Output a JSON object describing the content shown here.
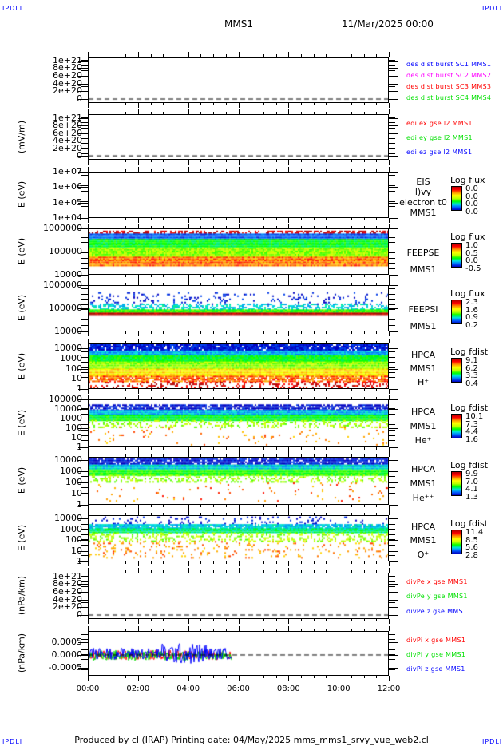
{
  "header": {
    "corner_tl": "IPDLI",
    "corner_tr": "IPDLI",
    "corner_bl": "IPDLI",
    "corner_br": "IPDLI",
    "title": "MMS1",
    "date": "11/Mar/2025 00:00"
  },
  "footer": {
    "text": "Produced by cl (IRAP)   Printing date: 04/May/2025   mms_mms1_srvy_vue_web2.cl"
  },
  "colors": {
    "blue": "#0000ff",
    "magenta": "#ff00ff",
    "red": "#ff0000",
    "green": "#00e000"
  },
  "chart_data": {
    "type": "heatmap",
    "x_range_hours": [
      0,
      12
    ],
    "x_tick_labels": [
      "00:00",
      "02:00",
      "04:00",
      "06:00",
      "08:00",
      "10:00",
      "12:00"
    ],
    "panels": [
      {
        "id": "des-dist",
        "kind": "line",
        "scale": "linear",
        "ylim": [
          -1.03e+20,
          1.096e+21
        ],
        "ylabel": "",
        "ticks": [
          {
            "v": 0,
            "t": "0"
          },
          {
            "v": 2e+20,
            "t": "2e+20"
          },
          {
            "v": 4e+20,
            "t": "4e+20"
          },
          {
            "v": 6e+20,
            "t": "6e+20"
          },
          {
            "v": 8e+20,
            "t": "8e+20"
          },
          {
            "v": 1e+21,
            "t": "1e+21"
          }
        ],
        "zero_line": true,
        "legend": [
          {
            "t": "des dist burst SC1 MMS1",
            "c": "#0000ff"
          },
          {
            "t": "des dist burst SC2 MMS2",
            "c": "#ff00ff"
          },
          {
            "t": "des dist burst SC3 MMS3",
            "c": "#ff0000"
          },
          {
            "t": "des dist burst SC4 MMS4",
            "c": "#00e000"
          }
        ]
      },
      {
        "id": "edi-e",
        "kind": "line",
        "scale": "linear",
        "ylim": [
          -1.03e+20,
          1.096e+21
        ],
        "ylabel": "(mV/m)",
        "ticks": [
          {
            "v": 0,
            "t": "0"
          },
          {
            "v": 2e+20,
            "t": "2e+20"
          },
          {
            "v": 4e+20,
            "t": "4e+20"
          },
          {
            "v": 6e+20,
            "t": "6e+20"
          },
          {
            "v": 8e+20,
            "t": "8e+20"
          },
          {
            "v": 1e+21,
            "t": "1e+21"
          }
        ],
        "zero_line": true,
        "legend": [
          {
            "t": "edi ex gse l2 MMS1",
            "c": "#ff0000"
          },
          {
            "t": "edi ey gse l2 MMS1",
            "c": "#00e000"
          },
          {
            "t": "edi ez gse l2 MMS1",
            "c": "#0000ff"
          }
        ]
      },
      {
        "id": "eis",
        "kind": "spectrogram",
        "scale": "log",
        "ylim": [
          10000.0,
          10000000.0
        ],
        "ylabel": "E (eV)",
        "ticks": [
          {
            "v": 10000.0,
            "t": "1e+04"
          },
          {
            "v": 100000.0,
            "t": "1e+05"
          },
          {
            "v": 1000000.0,
            "t": "1e+06"
          },
          {
            "v": 10000000.0,
            "t": "1e+07"
          }
        ],
        "side": [
          "EIS",
          "l)vy electron t0",
          "MMS1"
        ],
        "cb_title": "Log flux",
        "cb_labels": [
          "0.0",
          "0.0",
          "0.0",
          "0.0"
        ],
        "bands": []
      },
      {
        "id": "feepse",
        "kind": "spectrogram",
        "scale": "log",
        "ylim": [
          10000.0,
          1000000.0
        ],
        "ylabel": "E (eV)",
        "ticks": [
          {
            "v": 10000.0,
            "t": "10000"
          },
          {
            "v": 100000.0,
            "t": "100000"
          },
          {
            "v": 1000000.0,
            "t": "1000000"
          }
        ],
        "side": [
          "FEEPSE",
          "MMS1"
        ],
        "cb_title": "Log flux",
        "cb_labels": [
          "1.0",
          "0.5",
          "0.0",
          "-0.5"
        ],
        "cb_range": [
          -0.5,
          1.0
        ],
        "t_end": 12,
        "bands": [
          {
            "e": [
              600000.0,
              800000.0
            ],
            "z": 0.95,
            "d": 0.5
          },
          {
            "e": [
              350000.0,
              600000.0
            ],
            "z": -0.3,
            "d": 1
          },
          {
            "e": [
              150000.0,
              350000.0
            ],
            "z": 0.15,
            "d": 1
          },
          {
            "e": [
              60000.0,
              150000.0
            ],
            "z": 0.35,
            "d": 1
          },
          {
            "e": [
              25000.0,
              60000.0
            ],
            "z": 0.75,
            "d": 1
          }
        ]
      },
      {
        "id": "feepsi",
        "kind": "spectrogram",
        "scale": "log",
        "ylim": [
          10000.0,
          1000000.0
        ],
        "ylabel": "E (eV)",
        "ticks": [
          {
            "v": 10000.0,
            "t": "10000"
          },
          {
            "v": 100000.0,
            "t": "100000"
          },
          {
            "v": 1000000.0,
            "t": "1000000"
          }
        ],
        "side": [
          "FEEPSI",
          "MMS1"
        ],
        "cb_title": "Log flux",
        "cb_labels": [
          "2.3",
          "1.6",
          "0.9",
          "0.2"
        ],
        "cb_range": [
          0.2,
          2.3
        ],
        "t_end": 12,
        "bands": [
          {
            "e": [
              160000.0,
              500000.0
            ],
            "z": 0.3,
            "d": 0.12
          },
          {
            "e": [
              90000.0,
              160000.0
            ],
            "z": 0.8,
            "d": 0.5
          },
          {
            "e": [
              65000.0,
              90000.0
            ],
            "z": 1.2,
            "d": 1
          },
          {
            "e": [
              55000.0,
              65000.0
            ],
            "z": 2.3,
            "d": 1
          }
        ]
      },
      {
        "id": "hpca-h",
        "kind": "spectrogram",
        "scale": "log",
        "ylim": [
          1,
          30000.0
        ],
        "ylabel": "E (eV)",
        "ticks": [
          {
            "v": 1,
            "t": "1"
          },
          {
            "v": 10,
            "t": "10"
          },
          {
            "v": 100,
            "t": "100"
          },
          {
            "v": 1000,
            "t": "1000"
          },
          {
            "v": 10000,
            "t": "10000"
          }
        ],
        "side": [
          "HPCA",
          "MMS1",
          "H⁺"
        ],
        "cb_title": "Log fdist",
        "cb_labels": [
          "9.1",
          "6.2",
          "3.3",
          "0.4"
        ],
        "cb_range": [
          0.4,
          9.1
        ],
        "t_end": 12,
        "bands": [
          {
            "e": [
              6000,
              25000.0
            ],
            "z": 0.8,
            "d": 0.9
          },
          {
            "e": [
              2000,
              6000
            ],
            "z": 2.5,
            "d": 1
          },
          {
            "e": [
              500,
              2000
            ],
            "z": 4.2,
            "d": 1
          },
          {
            "e": [
              100,
              500
            ],
            "z": 5.3,
            "d": 1
          },
          {
            "e": [
              20,
              100
            ],
            "z": 6.7,
            "d": 1
          },
          {
            "e": [
              5,
              20
            ],
            "z": 7.8,
            "d": 0.8
          },
          {
            "e": [
              1,
              5
            ],
            "z": 8.8,
            "d": 0.3
          }
        ]
      },
      {
        "id": "hpca-he1",
        "kind": "spectrogram",
        "scale": "log",
        "ylim": [
          1,
          100000.0
        ],
        "ylabel": "E (eV)",
        "ticks": [
          {
            "v": 1,
            "t": "1"
          },
          {
            "v": 10,
            "t": "10"
          },
          {
            "v": 100,
            "t": "100"
          },
          {
            "v": 1000,
            "t": "1000"
          },
          {
            "v": 10000,
            "t": "10000"
          },
          {
            "v": 100000,
            "t": "100000"
          }
        ],
        "side": [
          "HPCA",
          "MMS1",
          "He⁺"
        ],
        "cb_title": "Log fdist",
        "cb_labels": [
          "10.1",
          "7.3",
          "4.4",
          "1.6"
        ],
        "cb_range": [
          1.6,
          10.1
        ],
        "t_end": 12,
        "bands": [
          {
            "e": [
              8000,
              30000.0
            ],
            "z": 1.8,
            "d": 0.8
          },
          {
            "e": [
              2500,
              8000
            ],
            "z": 3.8,
            "d": 1
          },
          {
            "e": [
              700,
              2500
            ],
            "z": 5.3,
            "d": 1
          },
          {
            "e": [
              150,
              700
            ],
            "z": 6.5,
            "d": 0.3
          },
          {
            "e": [
              2,
              150
            ],
            "z": 8.5,
            "d": 0.03
          }
        ]
      },
      {
        "id": "hpca-he2",
        "kind": "spectrogram",
        "scale": "log",
        "ylim": [
          1,
          20000.0
        ],
        "ylabel": "E (eV)",
        "ticks": [
          {
            "v": 1,
            "t": "1"
          },
          {
            "v": 10,
            "t": "10"
          },
          {
            "v": 100,
            "t": "100"
          },
          {
            "v": 1000,
            "t": "1000"
          },
          {
            "v": 10000,
            "t": "10000"
          }
        ],
        "side": [
          "HPCA",
          "MMS1",
          "He⁺⁺"
        ],
        "cb_title": "Log fdist",
        "cb_labels": [
          "9.9",
          "7.0",
          "4.1",
          "1.3"
        ],
        "cb_range": [
          1.3,
          9.9
        ],
        "t_end": 12,
        "bands": [
          {
            "e": [
              4000,
              15000.0
            ],
            "z": 1.6,
            "d": 0.85
          },
          {
            "e": [
              1500,
              4000
            ],
            "z": 3.8,
            "d": 1
          },
          {
            "e": [
              500,
              1500
            ],
            "z": 5.3,
            "d": 1
          },
          {
            "e": [
              100,
              500
            ],
            "z": 6.2,
            "d": 0.3
          },
          {
            "e": [
              2,
              100
            ],
            "z": 8.5,
            "d": 0.03
          }
        ]
      },
      {
        "id": "hpca-o",
        "kind": "spectrogram",
        "scale": "log",
        "ylim": [
          1,
          20000.0
        ],
        "ylabel": "E (eV)",
        "ticks": [
          {
            "v": 1,
            "t": "1"
          },
          {
            "v": 10,
            "t": "10"
          },
          {
            "v": 100,
            "t": "100"
          },
          {
            "v": 1000,
            "t": "1000"
          },
          {
            "v": 10000,
            "t": "10000"
          }
        ],
        "side": [
          "HPCA",
          "MMS1",
          "O⁺"
        ],
        "cb_title": "Log fdist",
        "cb_labels": [
          "11.4",
          "8.5",
          "5.6",
          "2.8"
        ],
        "cb_range": [
          2.8,
          11.4
        ],
        "t_end": 12,
        "bands": [
          {
            "e": [
              3000,
              15000.0
            ],
            "z": 3.0,
            "d": 0.12
          },
          {
            "e": [
              1200,
              3000
            ],
            "z": 5.2,
            "d": 0.9
          },
          {
            "e": [
              500,
              1200
            ],
            "z": 6.0,
            "d": 1
          },
          {
            "e": [
              80,
              500
            ],
            "z": 7.8,
            "d": 0.35
          },
          {
            "e": [
              2,
              80
            ],
            "z": 9.8,
            "d": 0.12
          }
        ]
      },
      {
        "id": "divpe",
        "kind": "line",
        "scale": "linear",
        "ylim": [
          -1.03e+20,
          1.096e+21
        ],
        "ylabel": "(nPa/km)",
        "ticks": [
          {
            "v": 0,
            "t": "0"
          },
          {
            "v": 2e+20,
            "t": "2e+20"
          },
          {
            "v": 4e+20,
            "t": "4e+20"
          },
          {
            "v": 6e+20,
            "t": "6e+20"
          },
          {
            "v": 8e+20,
            "t": "8e+20"
          },
          {
            "v": 1e+21,
            "t": "1e+21"
          }
        ],
        "zero_line": true,
        "legend": [
          {
            "t": "divPe x gse MMS1",
            "c": "#ff0000"
          },
          {
            "t": "divPe y gse MMS1",
            "c": "#00e000"
          },
          {
            "t": "divPe z gse MMS1",
            "c": "#0000ff"
          }
        ]
      },
      {
        "id": "divpi",
        "kind": "line",
        "scale": "linear",
        "ylim": [
          -0.00079,
          0.00091
        ],
        "ylabel": "(nPa/km)",
        "ticks": [
          {
            "v": -0.0005,
            "t": "-0.0005"
          },
          {
            "v": 0,
            "t": "0.0000"
          },
          {
            "v": 0.0005,
            "t": "0.0005"
          }
        ],
        "zero_line": true,
        "t_end": 5.75,
        "series_amplitude": [
          {
            "name": "x",
            "c": "#ff0000",
            "amp": 0.00018,
            "bias": 0
          },
          {
            "name": "y",
            "c": "#00e000",
            "amp": 0.0002,
            "bias": -2e-05
          },
          {
            "name": "z",
            "c": "#0000ff",
            "amp": 0.00022,
            "bias": 5e-05
          }
        ],
        "legend": [
          {
            "t": "divPi x gse MMS1",
            "c": "#ff0000"
          },
          {
            "t": "divPi y gse MMS1",
            "c": "#00e000"
          },
          {
            "t": "divPi z gse MMS1",
            "c": "#0000ff"
          }
        ]
      }
    ]
  }
}
